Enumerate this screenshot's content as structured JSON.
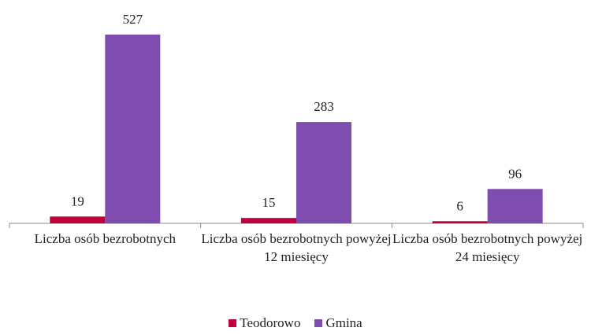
{
  "chart_data": {
    "type": "bar",
    "categories": [
      "Liczba osób bezrobotnych",
      "Liczba osób bezrobotnych powyżej 12 miesięcy",
      "Liczba osób bezrobotnych powyżej 24 miesięcy"
    ],
    "series": [
      {
        "name": "Teodorowo",
        "color": "#c0003c",
        "values": [
          19,
          15,
          6
        ]
      },
      {
        "name": "Gmina",
        "color": "#7f4cb0",
        "values": [
          527,
          283,
          96
        ]
      }
    ],
    "legend": "bottom"
  }
}
